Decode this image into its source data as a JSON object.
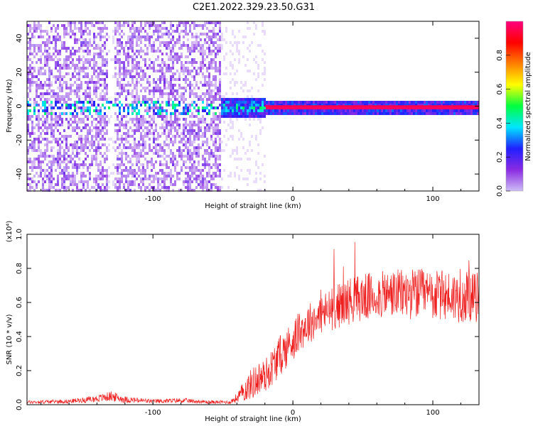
{
  "title": "C2E1.2022.329.23.50.G31",
  "chart_data": [
    {
      "type": "heatmap",
      "xlabel": "Height of straight line (km)",
      "ylabel": "Frequency (Hz)",
      "xlim": [
        -190,
        133
      ],
      "ylim": [
        -50,
        50
      ],
      "x_ticks": [
        -100,
        0,
        100
      ],
      "y_ticks": [
        -40,
        -20,
        0,
        20,
        40
      ],
      "grid": false,
      "colorbar": {
        "label": "Normalized spectral amplitude",
        "range": [
          0.0,
          1.0
        ],
        "ticks": [
          0.0,
          0.2,
          0.4,
          0.6,
          0.8
        ],
        "colormap": [
          "#cdbdf5",
          "#8a2be2",
          "#2020ff",
          "#00e5ff",
          "#00ff40",
          "#ffff00",
          "#ff8000",
          "#ff0000",
          "#ff0080"
        ]
      },
      "regions": [
        {
          "x_range": [
            -190,
            -52
          ],
          "description": "broadband noise across all frequencies, mostly 0.0-0.2"
        },
        {
          "x_range": [
            -132,
            -129
          ],
          "description": "gap with little signal"
        },
        {
          "x_range": [
            -52,
            -20
          ],
          "band_hz": [
            -5,
            5
          ],
          "amplitude": "0.2-0.5"
        },
        {
          "x_range": [
            -20,
            133
          ],
          "band_hz": [
            -3,
            3
          ],
          "peak_hz": 0,
          "amplitude": "1.0 (red line at 0 Hz)"
        }
      ]
    },
    {
      "type": "line",
      "xlabel": "Height of straight line (km)",
      "ylabel": "SNR (10 * v/v)",
      "yscale_label": "(x10⁴)",
      "xlim": [
        -190,
        133
      ],
      "ylim": [
        0,
        1.0
      ],
      "x_ticks": [
        -100,
        0,
        100
      ],
      "y_ticks": [
        0.0,
        0.2,
        0.4,
        0.6,
        0.8,
        1.0
      ],
      "grid": false,
      "series": [
        {
          "color": "#ee2020",
          "x": [
            -190,
            -160,
            -140,
            -130,
            -120,
            -100,
            -80,
            -60,
            -45,
            -40,
            -35,
            -30,
            -25,
            -20,
            -15,
            -10,
            -5,
            0,
            5,
            10,
            15,
            20,
            30,
            40,
            50,
            60,
            70,
            80,
            90,
            100,
            110,
            120,
            133
          ],
          "mean": [
            0.015,
            0.02,
            0.035,
            0.05,
            0.03,
            0.02,
            0.025,
            0.015,
            0.015,
            0.04,
            0.08,
            0.12,
            0.15,
            0.17,
            0.22,
            0.28,
            0.33,
            0.38,
            0.43,
            0.47,
            0.5,
            0.53,
            0.57,
            0.61,
            0.63,
            0.64,
            0.65,
            0.65,
            0.65,
            0.64,
            0.64,
            0.63,
            0.63
          ],
          "noise": [
            0.01,
            0.012,
            0.02,
            0.03,
            0.02,
            0.012,
            0.015,
            0.01,
            0.01,
            0.03,
            0.06,
            0.09,
            0.1,
            0.1,
            0.11,
            0.12,
            0.12,
            0.12,
            0.12,
            0.12,
            0.12,
            0.12,
            0.13,
            0.14,
            0.14,
            0.14,
            0.14,
            0.15,
            0.15,
            0.15,
            0.15,
            0.15,
            0.15
          ]
        }
      ]
    }
  ]
}
